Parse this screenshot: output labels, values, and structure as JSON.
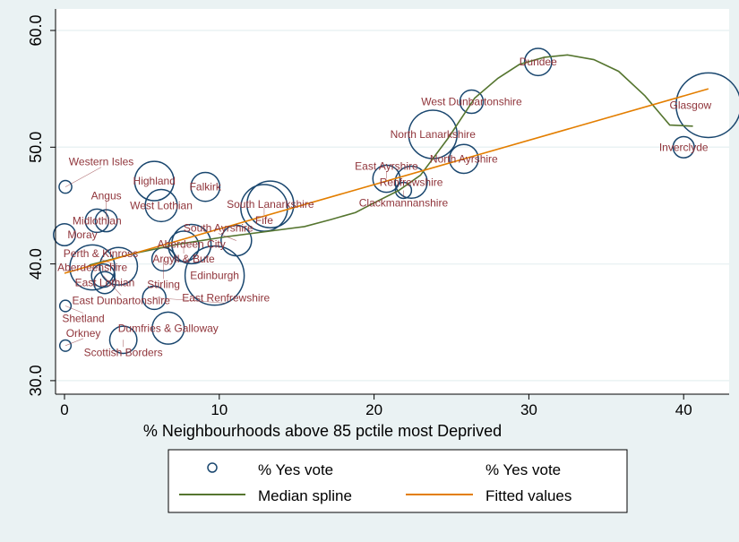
{
  "chart_data": {
    "type": "scatter",
    "xlabel": "% Neighbourhoods above 85 pctile most Deprived",
    "ylabel": "",
    "xlim": [
      -0.6,
      42.8
    ],
    "ylim": [
      29.0,
      61.5
    ],
    "xticks": [
      0,
      10,
      20,
      30,
      40
    ],
    "xtick_labels": [
      "0",
      "10",
      "20",
      "30",
      "40"
    ],
    "yticks": [
      30,
      40,
      50,
      60
    ],
    "ytick_labels": [
      "30.0",
      "40.0",
      "50.0",
      "60.0"
    ],
    "grid": "horizontal",
    "legend_position": "bottom",
    "colors": {
      "marker": "#1a476f",
      "label": "#90353b",
      "spline": "#55752f",
      "fitted": "#e37e00",
      "background": "#eaf2f3"
    },
    "points": [
      {
        "name": "Western Isles",
        "x": 0.06,
        "y": 46.6,
        "weight": 0.5
      },
      {
        "name": "Highland",
        "x": 5.8,
        "y": 47.1,
        "weight": 4.8
      },
      {
        "name": "Falkirk",
        "x": 9.1,
        "y": 46.6,
        "weight": 2.6
      },
      {
        "name": "West Lothian",
        "x": 6.25,
        "y": 45.0,
        "weight": 3.2
      },
      {
        "name": "South Lanarkshire",
        "x": 13.3,
        "y": 45.1,
        "weight": 6.8
      },
      {
        "name": "Fife",
        "x": 12.9,
        "y": 44.8,
        "weight": 6.8
      },
      {
        "name": "Midlothian",
        "x": 2.1,
        "y": 43.7,
        "weight": 1.7
      },
      {
        "name": "Angus",
        "x": 2.7,
        "y": 43.7,
        "weight": 1.5
      },
      {
        "name": "Moray",
        "x": 0.0,
        "y": 42.5,
        "weight": 1.5
      },
      {
        "name": "South Ayrshire",
        "x": 11.1,
        "y": 42.0,
        "weight": 2.9
      },
      {
        "name": "Argyll & Bute",
        "x": 7.7,
        "y": 41.5,
        "weight": 2.9
      },
      {
        "name": "Aberdeen City",
        "x": 8.2,
        "y": 41.7,
        "weight": 4.8
      },
      {
        "name": "Stirling",
        "x": 6.4,
        "y": 40.4,
        "weight": 1.7
      },
      {
        "name": "Edinburgh",
        "x": 9.7,
        "y": 39.0,
        "weight": 10.9
      },
      {
        "name": "Aberdeenshire",
        "x": 1.8,
        "y": 39.7,
        "weight": 6.3
      },
      {
        "name": "Perth & Kinross",
        "x": 3.5,
        "y": 39.8,
        "weight": 4.4
      },
      {
        "name": "East Dunbartonshire",
        "x": 2.5,
        "y": 39.0,
        "weight": 1.7
      },
      {
        "name": "East Lothian",
        "x": 2.6,
        "y": 38.4,
        "weight": 1.5
      },
      {
        "name": "East Renfrewshire",
        "x": 5.8,
        "y": 37.1,
        "weight": 1.7
      },
      {
        "name": "Shetland",
        "x": 0.06,
        "y": 36.4,
        "weight": 0.4
      },
      {
        "name": "Dumfries & Galloway",
        "x": 6.7,
        "y": 34.5,
        "weight": 3.2
      },
      {
        "name": "Scottish Borders",
        "x": 3.8,
        "y": 33.5,
        "weight": 2.3
      },
      {
        "name": "Orkney",
        "x": 0.06,
        "y": 33.0,
        "weight": 0.4
      },
      {
        "name": "Dundee",
        "x": 30.6,
        "y": 57.3,
        "weight": 2.3
      },
      {
        "name": "West Dunbartonshire",
        "x": 26.3,
        "y": 53.9,
        "weight": 1.7
      },
      {
        "name": "North Lanarkshire",
        "x": 23.8,
        "y": 51.1,
        "weight": 7.3
      },
      {
        "name": "North Ayrshire",
        "x": 25.8,
        "y": 49.0,
        "weight": 2.6
      },
      {
        "name": "East Ayrshire",
        "x": 20.8,
        "y": 47.3,
        "weight": 2.3
      },
      {
        "name": "Renfrewshire",
        "x": 22.4,
        "y": 47.0,
        "weight": 3.2
      },
      {
        "name": "Clackmannanshire",
        "x": 21.9,
        "y": 46.3,
        "weight": 0.8
      },
      {
        "name": "Glasgow",
        "x": 41.6,
        "y": 53.6,
        "weight": 13.0
      },
      {
        "name": "Inverclyde",
        "x": 40.0,
        "y": 50.0,
        "weight": 1.4
      }
    ],
    "median_spline": {
      "x": [
        1.6,
        4.5,
        7.4,
        10.3,
        13.2,
        15.5,
        17.2,
        18.8,
        20.1,
        21.6,
        23.0,
        24.8,
        26.5,
        28.0,
        29.4,
        31.0,
        32.5,
        34.2,
        35.8,
        37.5,
        39.1,
        40.6
      ],
      "y": [
        39.9,
        40.9,
        41.7,
        42.3,
        42.8,
        43.2,
        43.8,
        44.4,
        45.3,
        46.3,
        47.6,
        50.8,
        54.2,
        55.9,
        57.1,
        57.7,
        57.9,
        57.5,
        56.5,
        54.4,
        51.9,
        51.8
      ]
    },
    "fitted_values": {
      "x": [
        0,
        41.6
      ],
      "y": [
        39.2,
        55.0
      ]
    },
    "legend": [
      {
        "label": "% Yes vote",
        "kind": "marker"
      },
      {
        "label": "% Yes vote",
        "kind": "none"
      },
      {
        "label": "Median spline",
        "kind": "line-spline"
      },
      {
        "label": "Fitted values",
        "kind": "line-fitted"
      }
    ]
  }
}
